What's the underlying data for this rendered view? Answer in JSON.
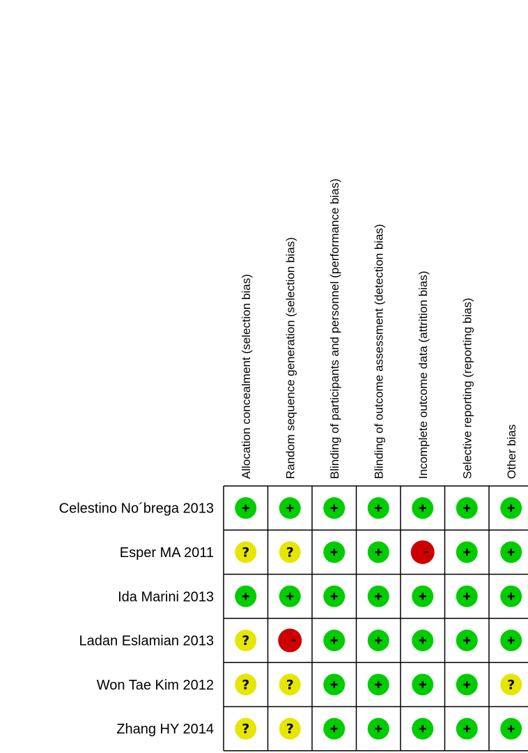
{
  "chart_data": {
    "type": "table",
    "domains": [
      "Allocation concealment (selection bias)",
      "Random sequence generation (selection bias)",
      "Blinding of participants and personnel (performance bias)",
      "Blinding of outcome assessment (detection bias)",
      "Incomplete outcome data (attrition bias)",
      "Selective reporting (reporting bias)",
      "Other bias"
    ],
    "studies": [
      "Celestino No´brega 2013",
      "Esper MA 2011",
      "Ida Marini 2013",
      "Ladan Eslamian 2013",
      "Won Tae Kim 2012",
      "Zhang HY 2014"
    ],
    "judgements": [
      [
        "+",
        "+",
        "+",
        "+",
        "+",
        "+",
        "+"
      ],
      [
        "?",
        "?",
        "+",
        "+",
        "-",
        "+",
        "+"
      ],
      [
        "+",
        "+",
        "+",
        "+",
        "+",
        "+",
        "+"
      ],
      [
        "?",
        "-",
        "+",
        "+",
        "+",
        "+",
        "+"
      ],
      [
        "?",
        "?",
        "+",
        "+",
        "+",
        "+",
        "?"
      ],
      [
        "?",
        "?",
        "+",
        "+",
        "+",
        "+",
        "+"
      ]
    ],
    "colors": {
      "low": "#00cc00",
      "unclear": "#e6e600",
      "high": "#cc0000",
      "grid": "#000000"
    }
  }
}
